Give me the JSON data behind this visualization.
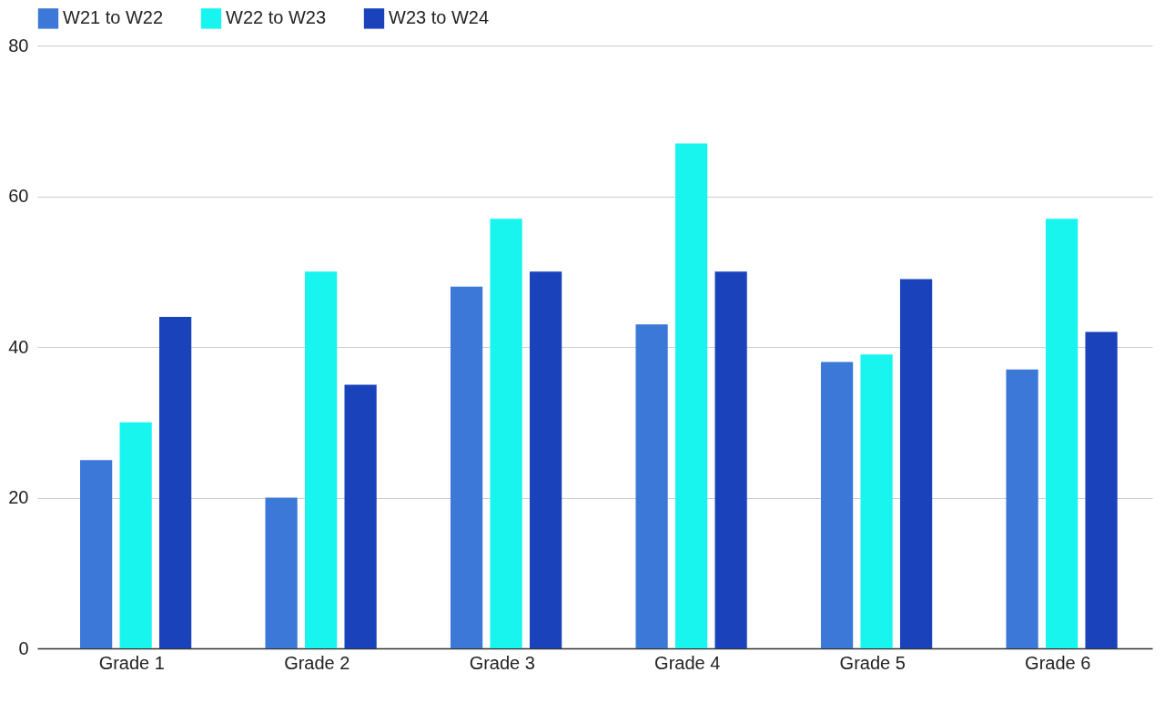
{
  "chart_data": {
    "type": "bar",
    "categories": [
      "Grade 1",
      "Grade 2",
      "Grade 3",
      "Grade 4",
      "Grade 5",
      "Grade 6"
    ],
    "series": [
      {
        "name": "W21 to W22",
        "color": "#3c78d8",
        "values": [
          25,
          20,
          48,
          43,
          38,
          37
        ]
      },
      {
        "name": "W22 to W23",
        "color": "#18f5ef",
        "values": [
          30,
          50,
          57,
          67,
          39,
          57
        ]
      },
      {
        "name": "W23 to W24",
        "color": "#1a43bb",
        "values": [
          44,
          35,
          50,
          50,
          49,
          42
        ]
      }
    ],
    "ylim": [
      0,
      80
    ],
    "yticks": [
      0,
      20,
      40,
      60,
      80
    ],
    "grid": "y",
    "legend": "top"
  }
}
